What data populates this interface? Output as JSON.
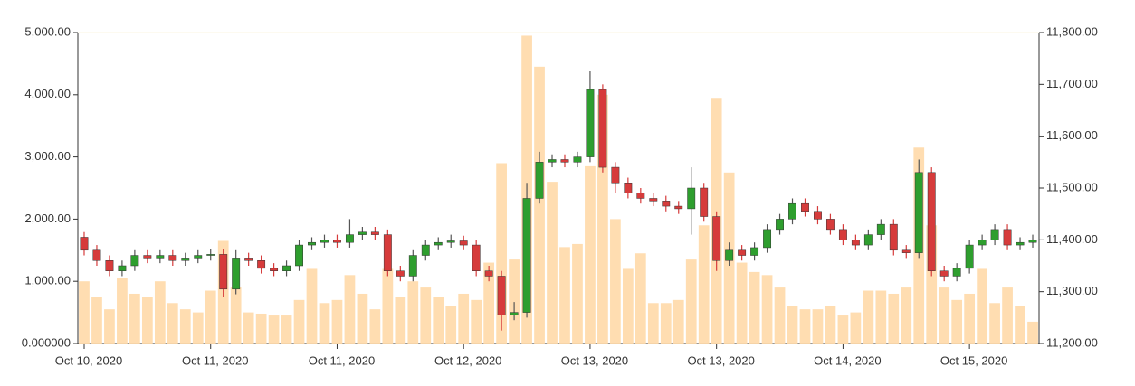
{
  "chart_data": {
    "type": "candlestick",
    "categories": [
      "Oct 10, 2020",
      null,
      null,
      null,
      null,
      null,
      null,
      null,
      null,
      null,
      "Oct 11, 2020",
      null,
      null,
      null,
      null,
      null,
      null,
      null,
      null,
      null,
      "Oct 11, 2020",
      null,
      null,
      null,
      null,
      null,
      null,
      null,
      null,
      null,
      "Oct 12, 2020",
      null,
      null,
      null,
      null,
      null,
      null,
      null,
      null,
      null,
      "Oct 13, 2020",
      null,
      null,
      null,
      null,
      null,
      null,
      null,
      null,
      null,
      "Oct 13, 2020",
      null,
      null,
      null,
      null,
      null,
      null,
      null,
      null,
      null,
      "Oct 14, 2020",
      null,
      null,
      null,
      null,
      null,
      null,
      null,
      null,
      null,
      "Oct 15, 2020",
      null,
      null,
      null,
      null,
      null
    ],
    "open": [
      11405,
      11380,
      11360,
      11340,
      11350,
      11370,
      11365,
      11370,
      11360,
      11365,
      11370,
      11372,
      11305,
      11365,
      11360,
      11345,
      11340,
      11350,
      11390,
      11395,
      11400,
      11395,
      11410,
      11415,
      11410,
      11340,
      11330,
      11370,
      11390,
      11395,
      11398,
      11390,
      11340,
      11330,
      11255,
      11260,
      11480,
      11550,
      11555,
      11550,
      11560,
      11690,
      11540,
      11510,
      11490,
      11480,
      11475,
      11465,
      11460,
      11500,
      11445,
      11360,
      11380,
      11370,
      11385,
      11420,
      11440,
      11470,
      11455,
      11440,
      11420,
      11400,
      11390,
      11410,
      11430,
      11380,
      11375,
      11530,
      11340,
      11330,
      11345,
      11390,
      11400,
      11420,
      11390,
      11395
    ],
    "high": [
      11415,
      11390,
      11370,
      11360,
      11380,
      11380,
      11380,
      11380,
      11375,
      11380,
      11382,
      11382,
      11380,
      11375,
      11370,
      11355,
      11360,
      11400,
      11405,
      11410,
      11410,
      11440,
      11425,
      11425,
      11420,
      11350,
      11380,
      11400,
      11405,
      11410,
      11408,
      11400,
      11350,
      11340,
      11280,
      11510,
      11570,
      11565,
      11565,
      11570,
      11725,
      11700,
      11550,
      11520,
      11500,
      11490,
      11485,
      11475,
      11540,
      11510,
      11455,
      11395,
      11390,
      11395,
      11430,
      11450,
      11480,
      11480,
      11465,
      11450,
      11430,
      11410,
      11420,
      11440,
      11440,
      11390,
      11555,
      11540,
      11350,
      11355,
      11400,
      11410,
      11430,
      11430,
      11405,
      11410
    ],
    "low": [
      11370,
      11350,
      11330,
      11330,
      11340,
      11355,
      11355,
      11350,
      11350,
      11355,
      11360,
      11290,
      11295,
      11350,
      11335,
      11330,
      11330,
      11340,
      11380,
      11385,
      11385,
      11385,
      11400,
      11400,
      11330,
      11320,
      11320,
      11360,
      11380,
      11385,
      11380,
      11330,
      11320,
      11225,
      11245,
      11250,
      11470,
      11540,
      11540,
      11540,
      11550,
      11530,
      11490,
      11480,
      11470,
      11465,
      11455,
      11450,
      11410,
      11435,
      11340,
      11350,
      11360,
      11360,
      11375,
      11410,
      11430,
      11445,
      11430,
      11410,
      11390,
      11380,
      11380,
      11400,
      11370,
      11365,
      11365,
      11330,
      11320,
      11320,
      11335,
      11380,
      11390,
      11380,
      11380,
      11385
    ],
    "close": [
      11380,
      11360,
      11340,
      11350,
      11370,
      11365,
      11370,
      11360,
      11365,
      11370,
      11372,
      11305,
      11365,
      11360,
      11345,
      11340,
      11350,
      11390,
      11395,
      11400,
      11395,
      11410,
      11415,
      11410,
      11340,
      11330,
      11370,
      11390,
      11395,
      11398,
      11390,
      11340,
      11330,
      11255,
      11260,
      11480,
      11550,
      11555,
      11550,
      11560,
      11690,
      11540,
      11510,
      11490,
      11480,
      11475,
      11465,
      11460,
      11500,
      11445,
      11360,
      11380,
      11370,
      11385,
      11420,
      11440,
      11470,
      11455,
      11440,
      11420,
      11400,
      11390,
      11410,
      11430,
      11380,
      11375,
      11530,
      11340,
      11330,
      11345,
      11390,
      11400,
      11420,
      11390,
      11395,
      11400
    ],
    "volume": [
      1000,
      750,
      550,
      1050,
      800,
      750,
      1000,
      650,
      550,
      500,
      850,
      1650,
      900,
      500,
      480,
      450,
      450,
      700,
      1200,
      650,
      700,
      1100,
      800,
      550,
      1200,
      750,
      1000,
      900,
      750,
      600,
      800,
      700,
      1300,
      2900,
      1350,
      4950,
      4450,
      2600,
      1550,
      1600,
      2850,
      4000,
      2000,
      1200,
      1450,
      650,
      650,
      700,
      1350,
      1900,
      3950,
      2750,
      1300,
      1150,
      1100,
      900,
      600,
      550,
      550,
      600,
      450,
      500,
      850,
      850,
      800,
      900,
      3150,
      1900,
      900,
      700,
      800,
      1200,
      650,
      900,
      600,
      350
    ],
    "up_color": "#2e9e2e",
    "down_color": "#d63b3b",
    "volume_color": "#ffd9a8",
    "ylim": [
      0,
      5000
    ],
    "yticks": [
      {
        "value": 0,
        "label": "0.000000"
      },
      {
        "value": 1000,
        "label": "1,000.00"
      },
      {
        "value": 2000,
        "label": "2,000.00"
      },
      {
        "value": 3000,
        "label": "3,000.00"
      },
      {
        "value": 4000,
        "label": "4,000.00"
      },
      {
        "value": 5000,
        "label": "5,000.00"
      }
    ],
    "y2lim": [
      11200,
      11800
    ],
    "y2ticks": [
      {
        "value": 11200,
        "label": "11,200.00"
      },
      {
        "value": 11300,
        "label": "11,300.00"
      },
      {
        "value": 11400,
        "label": "11,400.00"
      },
      {
        "value": 11500,
        "label": "11,500.00"
      },
      {
        "value": 11600,
        "label": "11,600.00"
      },
      {
        "value": 11700,
        "label": "11,700.00"
      },
      {
        "value": 11800,
        "label": "11,800.00"
      }
    ]
  }
}
